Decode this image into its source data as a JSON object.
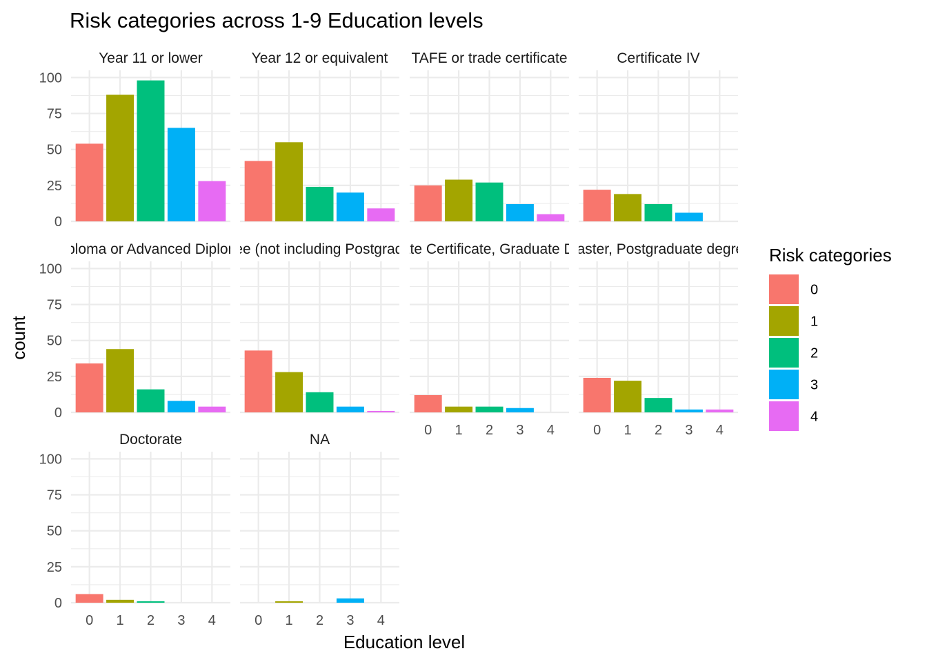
{
  "chart_data": {
    "type": "bar",
    "title": "Risk categories across 1-9 Education levels",
    "xlabel": "Education level",
    "ylabel": "count",
    "ylim": [
      0,
      105
    ],
    "y_ticks": [
      0,
      25,
      50,
      75,
      100
    ],
    "categories": [
      "0",
      "1",
      "2",
      "3",
      "4"
    ],
    "grid": true,
    "legend": {
      "title": "Risk categories",
      "position": "right",
      "entries": [
        "0",
        "1",
        "2",
        "3",
        "4"
      ]
    },
    "colors": [
      "#F8766D",
      "#A3A500",
      "#00BF7D",
      "#00B0F6",
      "#E76BF3"
    ],
    "panels": [
      {
        "label": "Year 11 or lower",
        "values": [
          54,
          88,
          98,
          65,
          28
        ]
      },
      {
        "label": "Year 12 or equivalent",
        "values": [
          42,
          55,
          24,
          20,
          9
        ]
      },
      {
        "label": "TAFE or trade certificate",
        "values": [
          25,
          29,
          27,
          12,
          5
        ]
      },
      {
        "label": "Certificate IV",
        "values": [
          22,
          19,
          12,
          6,
          0
        ]
      },
      {
        "label": "Diploma or Advanced Diploma",
        "values": [
          34,
          44,
          16,
          8,
          4
        ]
      },
      {
        "label": "Degree (not including Postgraduate)",
        "values": [
          43,
          28,
          14,
          4,
          1
        ]
      },
      {
        "label": "Graduate Certificate, Graduate Diploma",
        "values": [
          12,
          4,
          4,
          3,
          0
        ]
      },
      {
        "label": "Master, Postgraduate degree",
        "values": [
          24,
          22,
          10,
          2,
          2
        ]
      },
      {
        "label": "Doctorate",
        "values": [
          6,
          2,
          1,
          0,
          0
        ]
      },
      {
        "label": "NA",
        "values": [
          0,
          1,
          0,
          3,
          0
        ]
      }
    ]
  }
}
